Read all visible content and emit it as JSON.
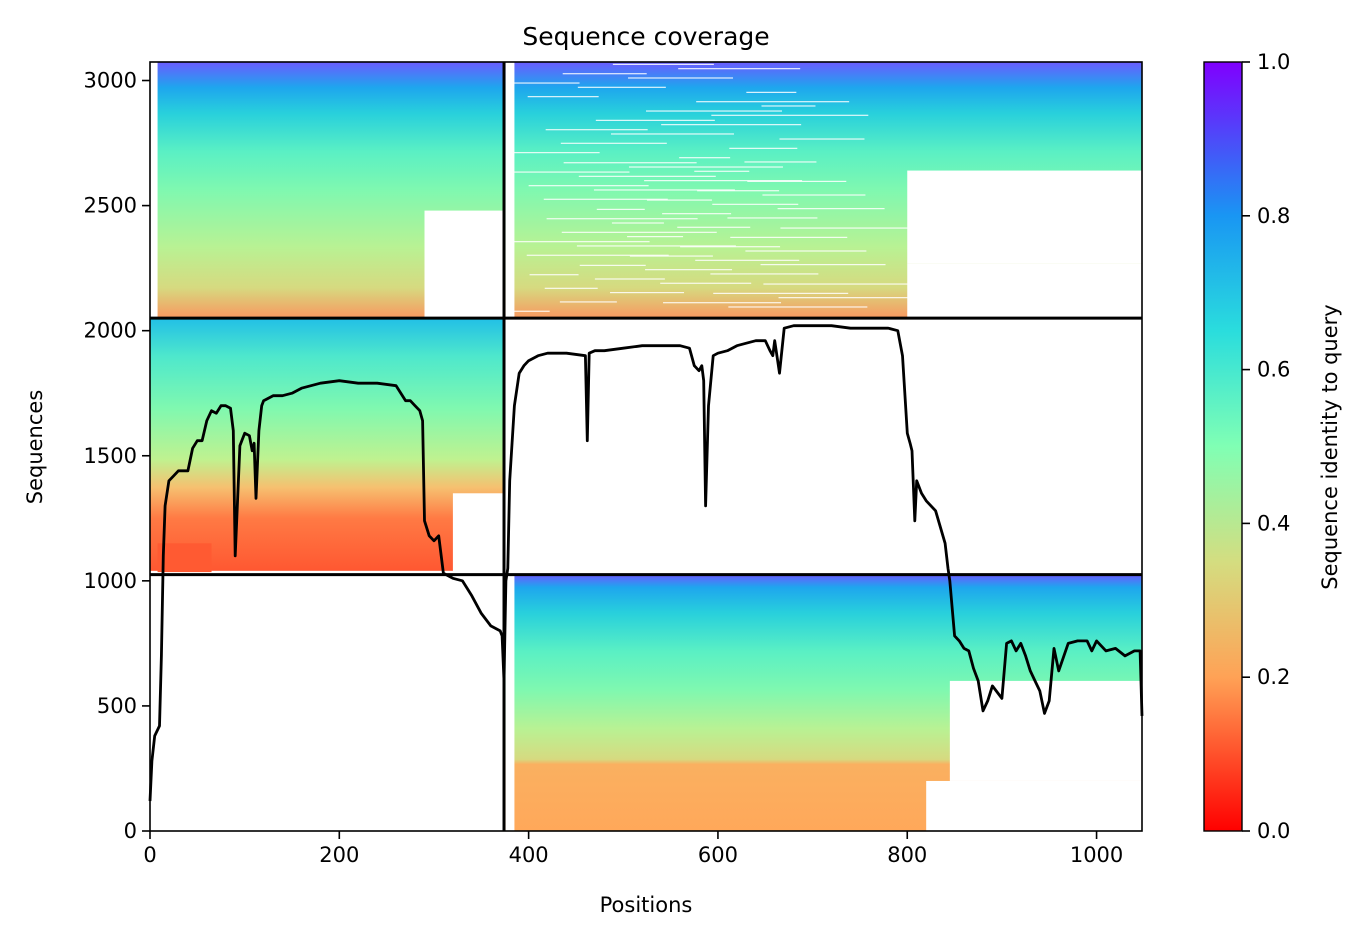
{
  "chart_data": {
    "type": "heatmap",
    "title": "Sequence coverage",
    "xlabel": "Positions",
    "ylabel": "Sequences",
    "colorbar_label": "Sequence identity to query",
    "colormap": "rainbow_r",
    "xlim": [
      0,
      1048
    ],
    "ylim": [
      0,
      3074
    ],
    "x_ticks": [
      0,
      200,
      400,
      600,
      800,
      1000
    ],
    "y_ticks": [
      0,
      500,
      1000,
      1500,
      2000,
      2500,
      3000
    ],
    "colorbar_ticks": [
      "0.0",
      "0.2",
      "0.4",
      "0.6",
      "0.8",
      "1.0"
    ],
    "grid": false,
    "block_boundaries": {
      "x": [
        374
      ],
      "y": [
        1025,
        2050
      ]
    },
    "blocks": [
      {
        "name": "upper-left",
        "x": [
          8,
          374
        ],
        "y": [
          2050,
          3074
        ]
      },
      {
        "name": "upper-right",
        "x": [
          376,
          1048
        ],
        "y": [
          2050,
          3074
        ]
      },
      {
        "name": "middle-left",
        "x": [
          0,
          374
        ],
        "y": [
          1025,
          2050
        ]
      },
      {
        "name": "lower-right",
        "x": [
          376,
          1048
        ],
        "y": [
          0,
          1025
        ]
      }
    ],
    "series": [
      {
        "name": "coverage",
        "color": "#000000",
        "x": [
          0,
          2,
          5,
          10,
          12,
          14,
          16,
          20,
          25,
          30,
          40,
          45,
          50,
          55,
          60,
          65,
          70,
          75,
          80,
          85,
          88,
          90,
          95,
          97,
          100,
          105,
          108,
          110,
          112,
          115,
          118,
          120,
          130,
          140,
          150,
          160,
          180,
          200,
          220,
          240,
          260,
          270,
          275,
          280,
          285,
          288,
          290,
          295,
          300,
          305,
          310,
          320,
          330,
          340,
          350,
          360,
          370,
          372,
          374,
          376,
          378,
          380,
          385,
          390,
          395,
          400,
          410,
          420,
          440,
          460,
          462,
          464,
          470,
          480,
          500,
          520,
          540,
          560,
          570,
          575,
          580,
          583,
          585,
          587,
          590,
          595,
          600,
          610,
          620,
          630,
          640,
          650,
          655,
          658,
          660,
          665,
          670,
          680,
          700,
          720,
          740,
          760,
          780,
          790,
          795,
          800,
          803,
          805,
          808,
          810,
          815,
          820,
          830,
          840,
          843,
          845,
          850,
          855,
          860,
          865,
          870,
          875,
          880,
          885,
          890,
          900,
          905,
          910,
          915,
          920,
          925,
          930,
          935,
          940,
          945,
          950,
          955,
          960,
          970,
          980,
          990,
          995,
          1000,
          1010,
          1020,
          1030,
          1040,
          1046,
          1048
        ],
        "y": [
          120,
          280,
          380,
          420,
          700,
          1100,
          1300,
          1400,
          1420,
          1440,
          1440,
          1530,
          1560,
          1560,
          1640,
          1680,
          1670,
          1700,
          1700,
          1690,
          1600,
          1100,
          1540,
          1560,
          1590,
          1580,
          1520,
          1550,
          1330,
          1600,
          1700,
          1720,
          1740,
          1740,
          1750,
          1770,
          1790,
          1800,
          1790,
          1790,
          1780,
          1720,
          1720,
          1700,
          1680,
          1640,
          1240,
          1180,
          1160,
          1180,
          1030,
          1010,
          1000,
          940,
          870,
          820,
          800,
          780,
          600,
          1000,
          1050,
          1400,
          1700,
          1830,
          1860,
          1880,
          1900,
          1910,
          1910,
          1900,
          1560,
          1910,
          1920,
          1920,
          1930,
          1940,
          1940,
          1940,
          1930,
          1860,
          1840,
          1860,
          1800,
          1300,
          1700,
          1900,
          1910,
          1920,
          1940,
          1950,
          1960,
          1960,
          1920,
          1900,
          1960,
          1830,
          2010,
          2020,
          2020,
          2020,
          2010,
          2010,
          2010,
          2000,
          1900,
          1590,
          1550,
          1520,
          1240,
          1400,
          1350,
          1320,
          1280,
          1150,
          1050,
          1000,
          780,
          760,
          730,
          720,
          650,
          600,
          480,
          520,
          580,
          530,
          750,
          760,
          720,
          750,
          700,
          640,
          600,
          560,
          470,
          520,
          730,
          640,
          750,
          760,
          760,
          720,
          760,
          720,
          730,
          700,
          720,
          720,
          460
        ]
      }
    ]
  }
}
